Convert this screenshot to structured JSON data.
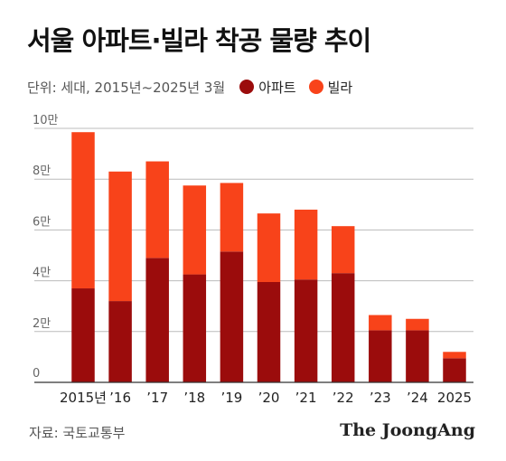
{
  "title": "서울 아파트·빌라 착공 물량 추이",
  "unit_note": "단위: 세대, 2015년~2025년 3월",
  "source": "자료: 국토교통부",
  "logo": "The JoongAng",
  "colors": {
    "apartment": "#9b0c0c",
    "villa": "#f8431a",
    "grid": "#bcbcbc",
    "axis": "#333333"
  },
  "chart_data": {
    "type": "bar",
    "stacked": true,
    "categories": [
      "2015년",
      "’16",
      "’17",
      "’18",
      "’19",
      "’20",
      "’21",
      "’22",
      "’23",
      "’24",
      "2025"
    ],
    "series": [
      {
        "name": "아파트",
        "values": [
          37000,
          32000,
          49000,
          42500,
          51500,
          39500,
          40500,
          43000,
          20500,
          20500,
          9500
        ]
      },
      {
        "name": "빌라",
        "values": [
          61500,
          51000,
          38000,
          35000,
          27000,
          27000,
          27500,
          18500,
          6000,
          4500,
          2500
        ]
      }
    ],
    "yticks": [
      {
        "value": 0,
        "label": "0"
      },
      {
        "value": 20000,
        "label": "2만"
      },
      {
        "value": 40000,
        "label": "4만"
      },
      {
        "value": 60000,
        "label": "6만"
      },
      {
        "value": 80000,
        "label": "8만"
      },
      {
        "value": 100000,
        "label": "10만"
      }
    ],
    "ylim": [
      0,
      100000
    ],
    "grid": true,
    "legend_position": "top-left"
  }
}
